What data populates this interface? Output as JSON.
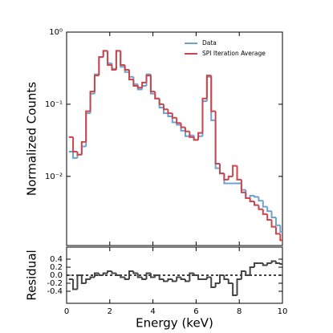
{
  "chart_data": [
    {
      "type": "step",
      "ylabel": "Normalized Counts",
      "log_scale": true,
      "xlim": [
        0,
        10
      ],
      "xticks": [
        0,
        2,
        4,
        6,
        8,
        10
      ],
      "ylim": [
        0.0011,
        1
      ],
      "yticks": [
        {
          "value": 1,
          "label": "10⁰"
        },
        {
          "value": 0.1,
          "label": "10⁻¹"
        },
        {
          "value": 0.01,
          "label": "10⁻²"
        }
      ],
      "legend": "upper right",
      "x": [
        0.2,
        0.4,
        0.6,
        0.8,
        1.0,
        1.2,
        1.4,
        1.6,
        1.8,
        2.0,
        2.2,
        2.4,
        2.6,
        2.8,
        3.0,
        3.2,
        3.4,
        3.6,
        3.8,
        4.0,
        4.2,
        4.4,
        4.6,
        4.8,
        5.0,
        5.2,
        5.4,
        5.6,
        5.8,
        6.0,
        6.2,
        6.4,
        6.6,
        6.8,
        7.0,
        7.2,
        7.4,
        7.6,
        7.8,
        8.0,
        8.2,
        8.4,
        8.6,
        8.8,
        9.0,
        9.2,
        9.4,
        9.6,
        9.8,
        10.0
      ],
      "series": [
        {
          "name": "Data",
          "color": "#6fa0d0",
          "values": [
            0.022,
            0.018,
            0.02,
            0.026,
            0.075,
            0.14,
            0.26,
            0.45,
            0.55,
            0.37,
            0.31,
            0.55,
            0.33,
            0.28,
            0.24,
            0.19,
            0.16,
            0.18,
            0.26,
            0.14,
            0.12,
            0.09,
            0.075,
            0.068,
            0.056,
            0.052,
            0.043,
            0.036,
            0.037,
            0.032,
            0.036,
            0.11,
            0.24,
            0.06,
            0.013,
            0.011,
            0.008,
            0.008,
            0.008,
            0.008,
            0.0065,
            0.005,
            0.0054,
            0.0052,
            0.0046,
            0.0038,
            0.0033,
            0.0027,
            0.0021,
            0.0017
          ]
        },
        {
          "name": "SPI Iteration Average",
          "color": "#c9474c",
          "values": [
            0.035,
            0.022,
            0.02,
            0.03,
            0.08,
            0.15,
            0.25,
            0.45,
            0.55,
            0.35,
            0.3,
            0.55,
            0.35,
            0.3,
            0.22,
            0.18,
            0.17,
            0.2,
            0.25,
            0.15,
            0.12,
            0.1,
            0.085,
            0.075,
            0.065,
            0.055,
            0.048,
            0.042,
            0.035,
            0.032,
            0.04,
            0.12,
            0.25,
            0.08,
            0.015,
            0.011,
            0.009,
            0.01,
            0.014,
            0.009,
            0.006,
            0.005,
            0.0045,
            0.004,
            0.0035,
            0.003,
            0.0025,
            0.002,
            0.0016,
            0.0013
          ]
        }
      ]
    },
    {
      "type": "step",
      "ylabel": "Residual",
      "xlabel": "Energy (keV)",
      "xlim": [
        0,
        10
      ],
      "xticks": [
        0,
        2,
        4,
        6,
        8,
        10
      ],
      "ylim": [
        -0.7,
        0.7
      ],
      "yticks": [
        0.4,
        0.2,
        {
          "value": 0,
          "label": "0.0"
        },
        -0.2,
        -0.4
      ],
      "reference_line": 0,
      "x": [
        0.2,
        0.4,
        0.6,
        0.8,
        1.0,
        1.2,
        1.4,
        1.6,
        1.8,
        2.0,
        2.2,
        2.4,
        2.6,
        2.8,
        3.0,
        3.2,
        3.4,
        3.6,
        3.8,
        4.0,
        4.2,
        4.4,
        4.6,
        4.8,
        5.0,
        5.2,
        5.4,
        5.6,
        5.8,
        6.0,
        6.2,
        6.4,
        6.6,
        6.8,
        7.0,
        7.2,
        7.4,
        7.6,
        7.8,
        8.0,
        8.2,
        8.4,
        8.6,
        8.8,
        9.0,
        9.2,
        9.4,
        9.6,
        9.8,
        10.0
      ],
      "series": [
        {
          "color": "#444444",
          "values": [
            -0.1,
            -0.35,
            0.0,
            -0.2,
            -0.1,
            -0.05,
            0.05,
            0.0,
            0.05,
            0.1,
            0.05,
            0.0,
            -0.05,
            -0.1,
            0.1,
            0.05,
            -0.05,
            -0.1,
            0.05,
            -0.05,
            0.0,
            -0.1,
            -0.15,
            -0.1,
            -0.15,
            -0.05,
            -0.1,
            -0.15,
            0.05,
            0.0,
            -0.1,
            -0.1,
            -0.05,
            -0.3,
            -0.2,
            0.0,
            -0.1,
            -0.2,
            -0.5,
            -0.1,
            0.1,
            0.0,
            0.2,
            0.3,
            0.3,
            0.25,
            0.3,
            0.35,
            0.3,
            0.28
          ]
        }
      ]
    }
  ]
}
